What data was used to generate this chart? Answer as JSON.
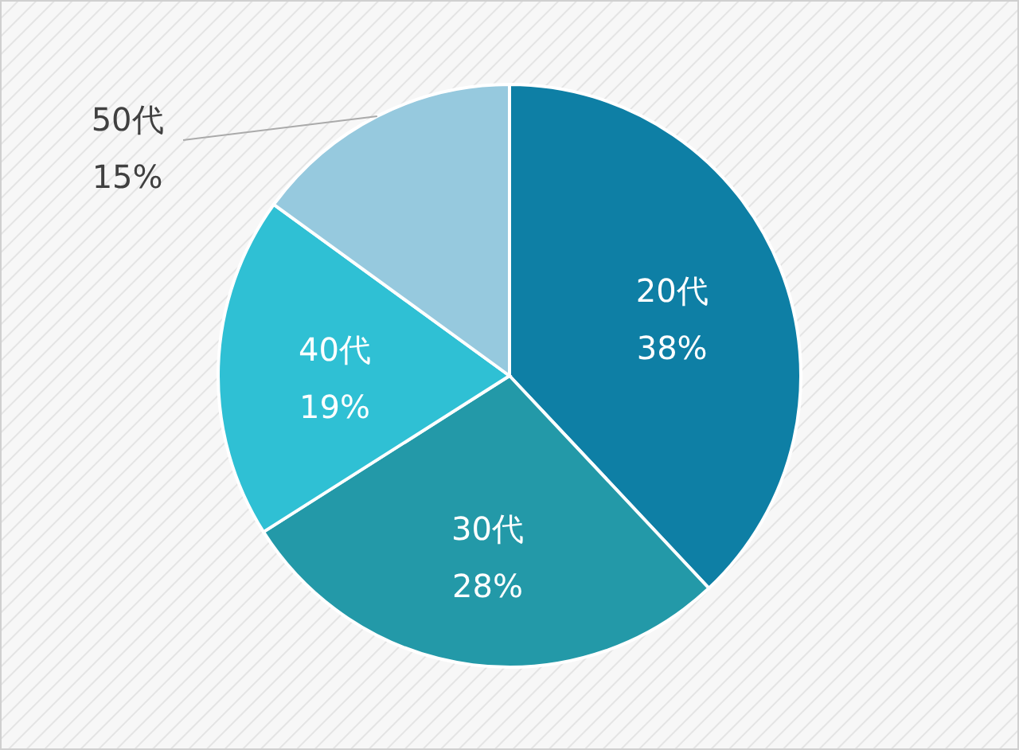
{
  "chart_data": {
    "type": "pie",
    "categories": [
      "20代",
      "30代",
      "40代",
      "50代"
    ],
    "values": [
      38,
      28,
      19,
      15
    ],
    "colors": [
      "#0e7fa5",
      "#2399a8",
      "#2fc0d4",
      "#96c9de"
    ],
    "value_labels": [
      "38%",
      "28%",
      "19%",
      "15%"
    ]
  }
}
